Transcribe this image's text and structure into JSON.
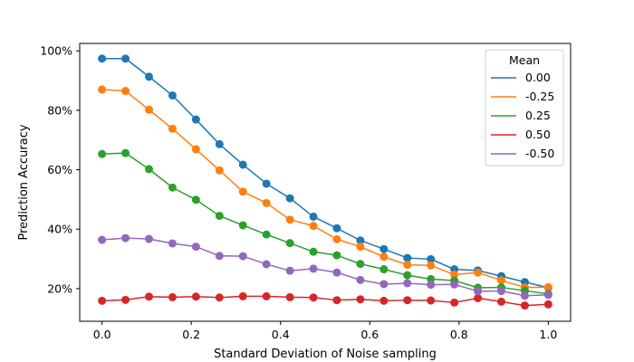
{
  "chart_data": {
    "type": "line",
    "title": "",
    "xlabel": "Standard Deviation of Noise sampling",
    "ylabel": "Prediction Accuracy",
    "xlim": [
      -0.05,
      1.05
    ],
    "ylim": [
      9,
      102.5
    ],
    "x_ticks": [
      0.0,
      0.2,
      0.4,
      0.6,
      0.8,
      1.0
    ],
    "x_tick_labels": [
      "0.0",
      "0.2",
      "0.4",
      "0.6",
      "0.8",
      "1.0"
    ],
    "y_ticks": [
      20,
      40,
      60,
      80,
      100
    ],
    "y_tick_labels": [
      "20%",
      "40%",
      "60%",
      "80%",
      "100%"
    ],
    "grid": false,
    "legend": {
      "title": "Mean",
      "placement": "top-right"
    },
    "x": [
      0.0,
      0.0526,
      0.1053,
      0.1579,
      0.2105,
      0.2632,
      0.3158,
      0.3684,
      0.4211,
      0.4737,
      0.5263,
      0.5789,
      0.6316,
      0.6842,
      0.7368,
      0.7895,
      0.8421,
      0.8947,
      0.9474,
      1.0
    ],
    "series": [
      {
        "name": "0.00",
        "color": "#1f77b4",
        "values": [
          97.4,
          97.4,
          91.3,
          85.0,
          76.9,
          68.6,
          61.7,
          55.3,
          50.4,
          44.2,
          40.3,
          36.2,
          33.3,
          30.3,
          29.9,
          26.5,
          26.1,
          24.2,
          22.2,
          20.3
        ]
      },
      {
        "name": "-0.25",
        "color": "#ff7f0e",
        "values": [
          87.0,
          86.5,
          80.2,
          73.8,
          66.9,
          59.8,
          52.6,
          48.8,
          43.2,
          41.1,
          36.6,
          34.1,
          30.7,
          28.0,
          27.8,
          24.7,
          25.4,
          22.8,
          20.4,
          20.5
        ]
      },
      {
        "name": "0.25",
        "color": "#2ca02c",
        "values": [
          65.3,
          65.6,
          60.2,
          54.0,
          49.9,
          44.5,
          41.3,
          38.2,
          35.3,
          32.4,
          31.2,
          28.3,
          26.5,
          24.5,
          23.2,
          22.7,
          20.3,
          20.4,
          19.3,
          18.2
        ]
      },
      {
        "name": "0.50",
        "color": "#d62728",
        "values": [
          15.9,
          16.2,
          17.3,
          17.1,
          17.3,
          17.0,
          17.4,
          17.4,
          17.1,
          17.0,
          16.1,
          16.4,
          15.9,
          16.1,
          16.0,
          15.3,
          16.8,
          15.6,
          14.3,
          14.7
        ]
      },
      {
        "name": "-0.50",
        "color": "#9467bd",
        "values": [
          36.4,
          37.0,
          36.7,
          35.2,
          34.1,
          31.0,
          30.9,
          28.2,
          26.0,
          26.7,
          25.4,
          22.9,
          21.5,
          21.8,
          21.3,
          21.4,
          19.1,
          19.2,
          17.6,
          17.9
        ]
      }
    ]
  }
}
